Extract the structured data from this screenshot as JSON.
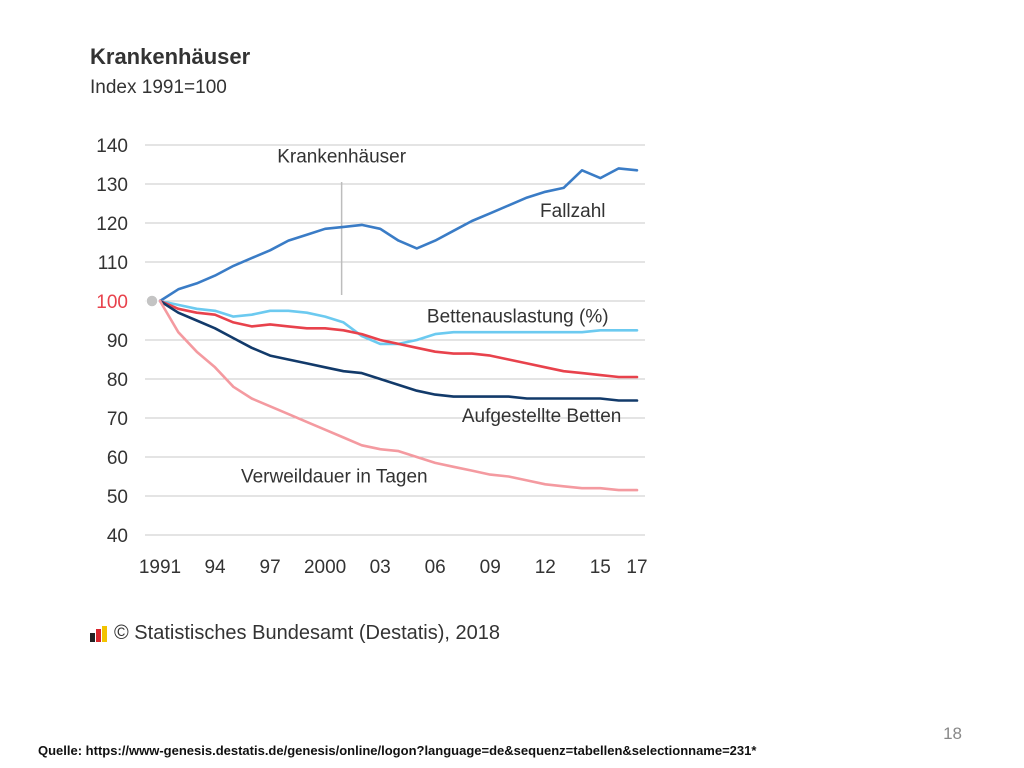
{
  "colors": {
    "Fallzahl": "#3a7cc6",
    "Bettenauslastung": "#6ccaf0",
    "Krankenhaeuser": "#e8424c",
    "Aufgestellte Betten": "#123a6a",
    "Verweildauer": "#f49aa0",
    "axis_text": "#333333",
    "highlight_100": "#e8424c",
    "grid": "#c8c8c8"
  },
  "chart_data": {
    "type": "line",
    "title": "Krankenhäuser",
    "subtitle": "Index 1991=100",
    "xlabel": "",
    "ylabel": "",
    "ylim": [
      40,
      140
    ],
    "yticks": [
      40,
      50,
      60,
      70,
      80,
      90,
      100,
      110,
      120,
      130,
      140
    ],
    "xlim": [
      1991,
      2017
    ],
    "xticks": [
      {
        "value": 1991,
        "label": "1991"
      },
      {
        "value": 1994,
        "label": "94"
      },
      {
        "value": 1997,
        "label": "97"
      },
      {
        "value": 2000,
        "label": "2000"
      },
      {
        "value": 2003,
        "label": "03"
      },
      {
        "value": 2006,
        "label": "06"
      },
      {
        "value": 2009,
        "label": "09"
      },
      {
        "value": 2012,
        "label": "12"
      },
      {
        "value": 2015,
        "label": "15"
      },
      {
        "value": 2017,
        "label": "17"
      }
    ],
    "grid": true,
    "x": [
      1991,
      1992,
      1993,
      1994,
      1995,
      1996,
      1997,
      1998,
      1999,
      2000,
      2001,
      2002,
      2003,
      2004,
      2005,
      2006,
      2007,
      2008,
      2009,
      2010,
      2011,
      2012,
      2013,
      2014,
      2015,
      2016,
      2017
    ],
    "series": [
      {
        "name": "Fallzahl",
        "color_key": "Fallzahl",
        "values": [
          100,
          103,
          104.5,
          106.5,
          109,
          111,
          113,
          115.5,
          117,
          118.5,
          119,
          119.5,
          118.5,
          115.5,
          113.5,
          115.5,
          118,
          120.5,
          122.5,
          124.5,
          126.5,
          128,
          129,
          133.5,
          131.5,
          134,
          133.5
        ]
      },
      {
        "name": "Bettenauslastung (%)",
        "color_key": "Bettenauslastung",
        "values": [
          100,
          99,
          98,
          97.5,
          96,
          96.5,
          97.5,
          97.5,
          97,
          96,
          94.5,
          91,
          89,
          89,
          90,
          91.5,
          92,
          92,
          92,
          92,
          92,
          92,
          92,
          92,
          92.5,
          92.5,
          92.5
        ]
      },
      {
        "name": "Krankenhäuser",
        "color_key": "Krankenhaeuser",
        "values": [
          100,
          98,
          97,
          96.5,
          94.5,
          93.5,
          94,
          93.5,
          93,
          93,
          92.5,
          91.5,
          90,
          89,
          88,
          87,
          86.5,
          86.5,
          86,
          85,
          84,
          83,
          82,
          81.5,
          81,
          80.5,
          80.5
        ]
      },
      {
        "name": "Aufgestellte Betten",
        "color_key": "Aufgestellte Betten",
        "values": [
          100,
          97,
          95,
          93,
          90.5,
          88,
          86,
          85,
          84,
          83,
          82,
          81.5,
          80,
          78.5,
          77,
          76,
          75.5,
          75.5,
          75.5,
          75.5,
          75,
          75,
          75,
          75,
          75,
          74.5,
          74.5
        ]
      },
      {
        "name": "Verweildauer in Tagen",
        "color_key": "Verweildauer",
        "values": [
          100,
          92,
          87,
          83,
          78,
          75,
          73,
          71,
          69,
          67,
          65,
          63,
          62,
          61.5,
          60,
          58.5,
          57.5,
          56.5,
          55.5,
          55,
          54,
          53,
          52.5,
          52,
          52,
          51.5,
          51.5
        ]
      }
    ],
    "annotations": [
      {
        "text": "Krankenhäuser",
        "x": 2000.9,
        "y": 135.5,
        "anchor": "middle",
        "color_key": "axis_text"
      },
      {
        "text": "Fallzahl",
        "x": 2013.5,
        "y": 121.5,
        "anchor": "middle",
        "color_key": "axis_text"
      },
      {
        "text": "Bettenauslastung (%)",
        "x": 2010.5,
        "y": 94.5,
        "anchor": "middle",
        "color_key": "axis_text"
      },
      {
        "text": "Aufgestellte Betten",
        "x": 2011.8,
        "y": 69,
        "anchor": "middle",
        "color_key": "axis_text"
      },
      {
        "text": "Verweildauer in Tagen",
        "x": 2000.5,
        "y": 53.5,
        "anchor": "middle",
        "color_key": "axis_text"
      }
    ],
    "marker_line_x": 2000.9,
    "base_point": {
      "x": 1991,
      "y": 100
    }
  },
  "footer": {
    "copyright": "© Statistisches Bundesamt (Destatis), 2018",
    "page_number": "18",
    "source": "Quelle: https://www-genesis.destatis.de/genesis/online/logon?language=de&sequenz=tabellen&selectionname=231*"
  }
}
